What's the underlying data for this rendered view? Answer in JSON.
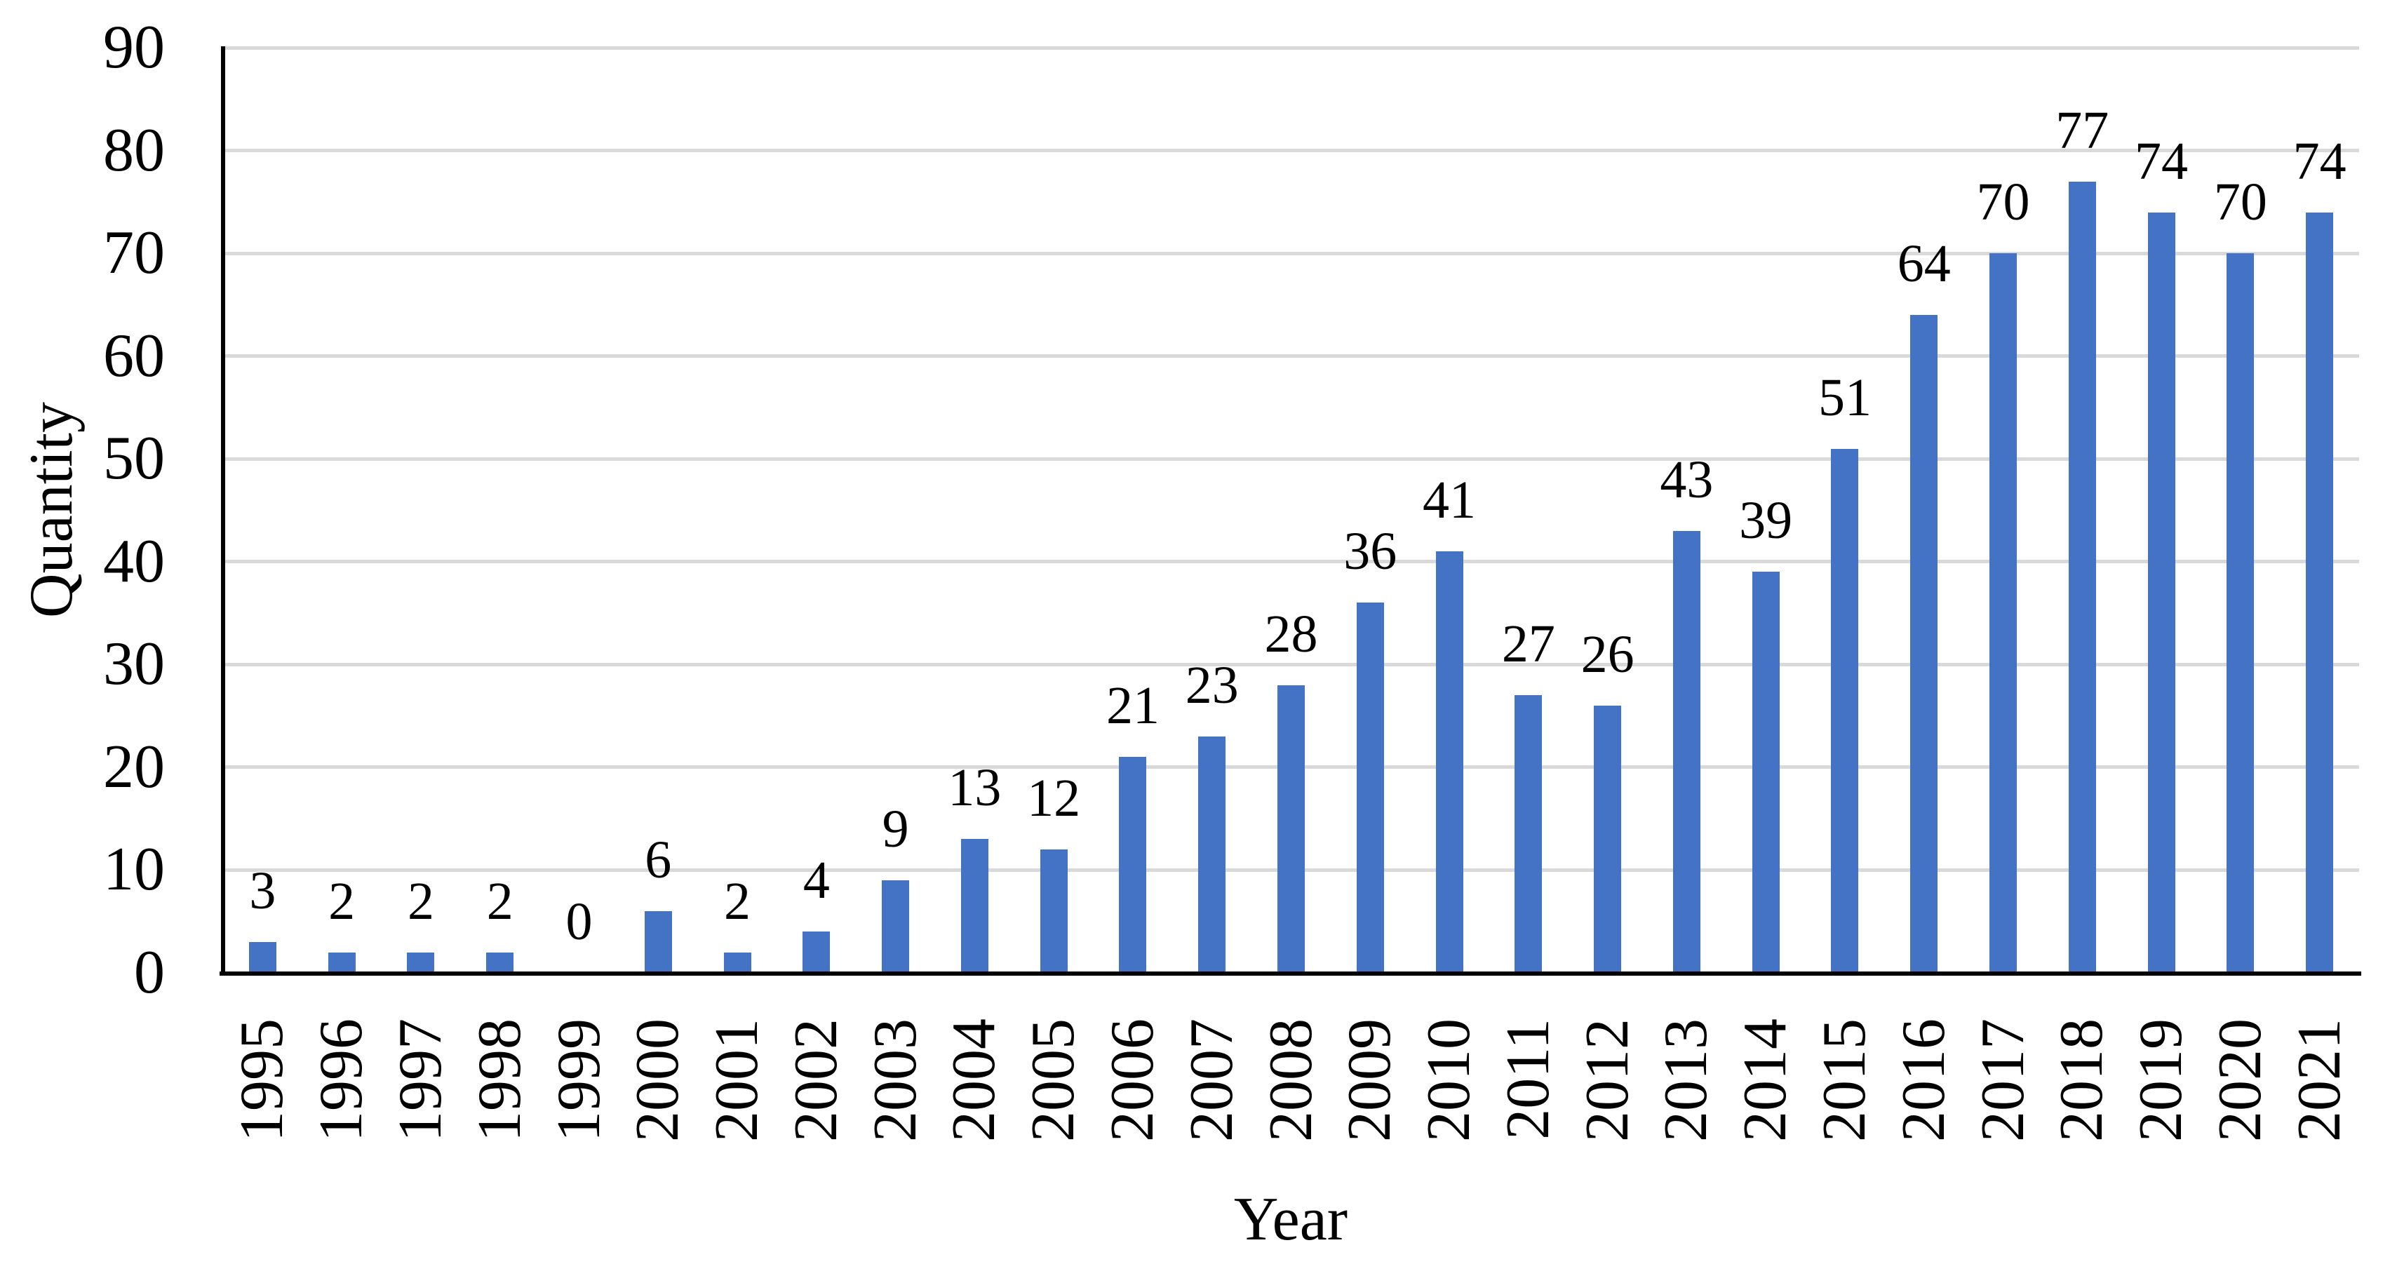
{
  "chart_data": {
    "type": "bar",
    "title": "",
    "xlabel": "Year",
    "ylabel": "Quantity",
    "categories": [
      "1995",
      "1996",
      "1997",
      "1998",
      "1999",
      "2000",
      "2001",
      "2002",
      "2003",
      "2004",
      "2005",
      "2006",
      "2007",
      "2008",
      "2009",
      "2010",
      "2011",
      "2012",
      "2013",
      "2014",
      "2015",
      "2016",
      "2017",
      "2018",
      "2019",
      "2020",
      "2021"
    ],
    "values": [
      3,
      2,
      2,
      2,
      0,
      6,
      2,
      4,
      9,
      13,
      12,
      21,
      23,
      28,
      36,
      41,
      27,
      26,
      43,
      39,
      51,
      64,
      70,
      77,
      74,
      70,
      74
    ],
    "ylim": [
      0,
      90
    ],
    "ytick_step": 10,
    "grid": true,
    "legend": "none",
    "data_labels": "outside-end",
    "colors": {
      "bar": "#4472C4",
      "gridline": "#D9D9D9",
      "axis": "#000000",
      "text": "#000000",
      "background": "#FFFFFF"
    }
  }
}
